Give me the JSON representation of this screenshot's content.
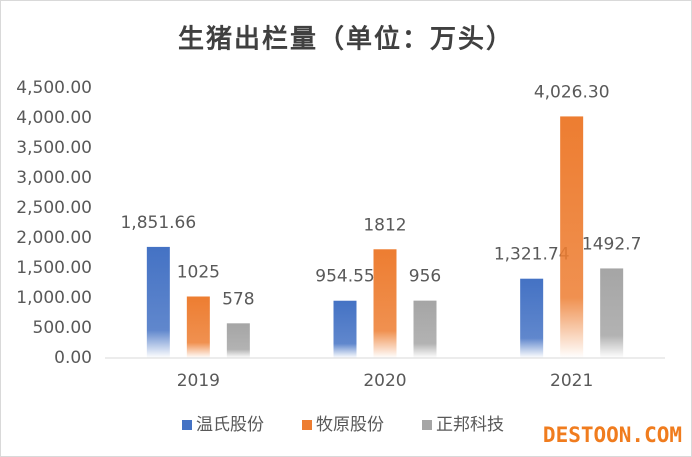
{
  "chart_data": {
    "type": "bar",
    "title": "生猪出栏量（单位：万头）",
    "categories": [
      "2019",
      "2020",
      "2021"
    ],
    "series": [
      {
        "name": "温氏股份",
        "color": "#4472c4",
        "values": [
          1851.66,
          954.55,
          1321.74
        ],
        "value_labels": [
          "1,851.66",
          "954.55",
          "1,321.74"
        ]
      },
      {
        "name": "牧原股份",
        "color": "#ed7d31",
        "values": [
          1025,
          1812,
          4026.3
        ],
        "value_labels": [
          "1025",
          "1812",
          "4,026.30"
        ]
      },
      {
        "name": "正邦科技",
        "color": "#a5a5a5",
        "values": [
          578,
          956,
          1492.7
        ],
        "value_labels": [
          "578",
          "956",
          "1492.7"
        ]
      }
    ],
    "ylim": [
      0,
      4500
    ],
    "yticks": [
      {
        "value": 0,
        "label": "0.00"
      },
      {
        "value": 500,
        "label": "500.00"
      },
      {
        "value": 1000,
        "label": "1,000.00"
      },
      {
        "value": 1500,
        "label": "1,500.00"
      },
      {
        "value": 2000,
        "label": "2,000.00"
      },
      {
        "value": 2500,
        "label": "2,500.00"
      },
      {
        "value": 3000,
        "label": "3,000.00"
      },
      {
        "value": 3500,
        "label": "3,500.00"
      },
      {
        "value": 4000,
        "label": "4,000.00"
      },
      {
        "value": 4500,
        "label": "4,500.00"
      }
    ],
    "grid": false,
    "legend": "bottom",
    "watermark": "DESTOON.COM"
  }
}
